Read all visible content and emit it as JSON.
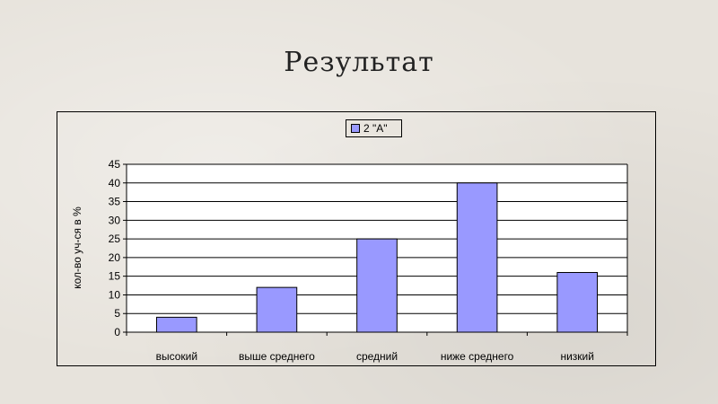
{
  "slide": {
    "title": "Результат"
  },
  "chart_data": {
    "type": "bar",
    "categories": [
      "высокий",
      "выше среднего",
      "средний",
      "ниже среднего",
      "низкий"
    ],
    "series": [
      {
        "name": "2 \"А\"",
        "values": [
          4,
          12,
          25,
          40,
          16
        ]
      }
    ],
    "title": "",
    "xlabel": "",
    "ylabel": "кол-во уч-ся в %",
    "ylim": [
      0,
      45
    ],
    "yticks": [
      0,
      5,
      10,
      15,
      20,
      25,
      30,
      35,
      40,
      45
    ],
    "grid": true,
    "legend_position": "top",
    "colors": {
      "bar": "#9999ff",
      "bar_stroke": "#000000",
      "plot_bg": "#ffffff",
      "grid": "#000000"
    }
  }
}
